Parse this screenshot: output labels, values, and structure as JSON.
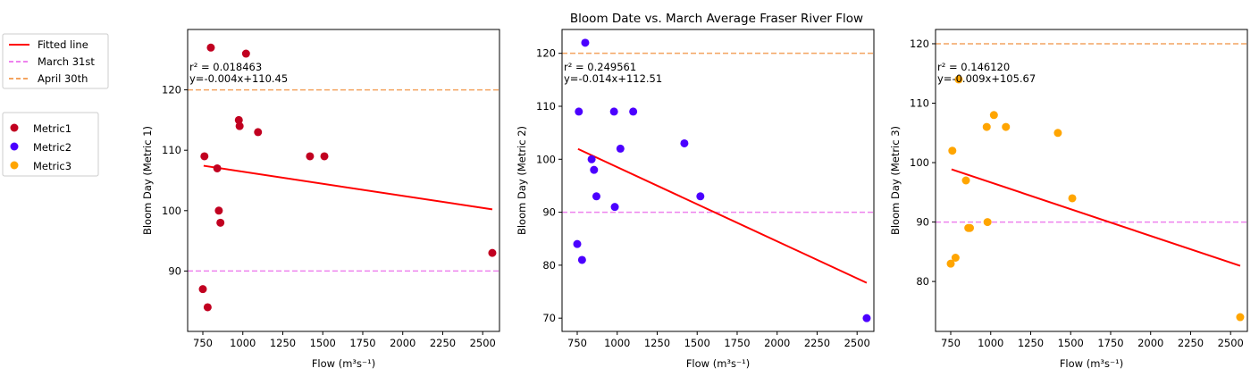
{
  "figure_title": "Bloom Date vs. March Average Fraser River Flow",
  "colors": {
    "fitted": "#ff0000",
    "march31": "#ee82ee",
    "april30": "#f4a460",
    "metric1": "#c10020",
    "metric2": "#4b00ff",
    "metric3": "#ffa500"
  },
  "legend_lines": [
    {
      "label": "Fitted line",
      "color": "#ff0000",
      "dash": "solid"
    },
    {
      "label": "March 31st",
      "color": "#ee82ee",
      "dash": "dashed"
    },
    {
      "label": "April 30th",
      "color": "#f4a460",
      "dash": "dashed"
    }
  ],
  "legend_markers": [
    {
      "label": "Metric1",
      "color": "#c10020"
    },
    {
      "label": "Metric2",
      "color": "#4b00ff"
    },
    {
      "label": "Metric3",
      "color": "#ffa500"
    }
  ],
  "chart_data": [
    {
      "type": "scatter",
      "title": "",
      "xlabel": "Flow (m³s⁻¹)",
      "ylabel": "Bloom Day (Metric 1)",
      "xlim": [
        655,
        2605
      ],
      "ylim": [
        80,
        130
      ],
      "xticks": [
        750,
        1000,
        1250,
        1500,
        1750,
        2000,
        2250,
        2500
      ],
      "yticks": [
        90,
        100,
        110,
        120
      ],
      "annotation": [
        "r² = 0.018463",
        "y=-0.004x+110.45"
      ],
      "hlines": [
        {
          "y": 120,
          "color": "#f4a460"
        },
        {
          "y": 90,
          "color": "#ee82ee"
        }
      ],
      "fit": {
        "slope": -0.004,
        "intercept": 110.45,
        "x_range": [
          755,
          2560
        ],
        "color": "#ff0000"
      },
      "series": [
        {
          "name": "Metric1",
          "color": "#c10020",
          "points": [
            [
              800,
              127
            ],
            [
              1020,
              126
            ],
            [
              975,
              115
            ],
            [
              980,
              114
            ],
            [
              1095,
              113
            ],
            [
              760,
              109
            ],
            [
              1420,
              109
            ],
            [
              1510,
              109
            ],
            [
              840,
              107
            ],
            [
              850,
              100
            ],
            [
              860,
              98
            ],
            [
              2560,
              93
            ],
            [
              750,
              87
            ],
            [
              780,
              84
            ]
          ]
        }
      ]
    },
    {
      "type": "scatter",
      "title": "",
      "xlabel": "Flow (m³s⁻¹)",
      "ylabel": "Bloom Day (Metric 2)",
      "xlim": [
        655,
        2605
      ],
      "ylim": [
        67.5,
        124.5
      ],
      "xticks": [
        750,
        1000,
        1250,
        1500,
        1750,
        2000,
        2250,
        2500
      ],
      "yticks": [
        70,
        80,
        90,
        100,
        110,
        120
      ],
      "annotation": [
        "r² = 0.249561",
        "y=-0.014x+112.51"
      ],
      "hlines": [
        {
          "y": 120,
          "color": "#f4a460"
        },
        {
          "y": 90,
          "color": "#ee82ee"
        }
      ],
      "fit": {
        "slope": -0.014,
        "intercept": 112.51,
        "x_range": [
          755,
          2560
        ],
        "color": "#ff0000"
      },
      "series": [
        {
          "name": "Metric2",
          "color": "#4b00ff",
          "points": [
            [
              800,
              122
            ],
            [
              760,
              109
            ],
            [
              980,
              109
            ],
            [
              1100,
              109
            ],
            [
              1420,
              103
            ],
            [
              1020,
              102
            ],
            [
              840,
              100
            ],
            [
              855,
              98
            ],
            [
              870,
              93
            ],
            [
              1520,
              93
            ],
            [
              985,
              91
            ],
            [
              750,
              84
            ],
            [
              780,
              81
            ],
            [
              2560,
              70
            ]
          ]
        }
      ]
    },
    {
      "type": "scatter",
      "title": "",
      "xlabel": "Flow (m³s⁻¹)",
      "ylabel": "Bloom Day (Metric 3)",
      "xlim": [
        655,
        2605
      ],
      "ylim": [
        71.6,
        122.4
      ],
      "xticks": [
        750,
        1000,
        1250,
        1500,
        1750,
        2000,
        2250,
        2500
      ],
      "yticks": [
        80,
        90,
        100,
        110,
        120
      ],
      "annotation": [
        "r² = 0.146120",
        "y=-0.009x+105.67"
      ],
      "hlines": [
        {
          "y": 120,
          "color": "#f4a460"
        },
        {
          "y": 90,
          "color": "#ee82ee"
        }
      ],
      "fit": {
        "slope": -0.009,
        "intercept": 105.67,
        "x_range": [
          755,
          2560
        ],
        "color": "#ff0000"
      },
      "series": [
        {
          "name": "Metric3",
          "color": "#ffa500",
          "points": [
            [
              800,
              114
            ],
            [
              1020,
              108
            ],
            [
              975,
              106
            ],
            [
              1095,
              106
            ],
            [
              1420,
              105
            ],
            [
              760,
              102
            ],
            [
              845,
              97
            ],
            [
              1510,
              94
            ],
            [
              980,
              90
            ],
            [
              860,
              89
            ],
            [
              870,
              89
            ],
            [
              780,
              84
            ],
            [
              750,
              83
            ],
            [
              2560,
              74
            ]
          ]
        }
      ]
    }
  ]
}
